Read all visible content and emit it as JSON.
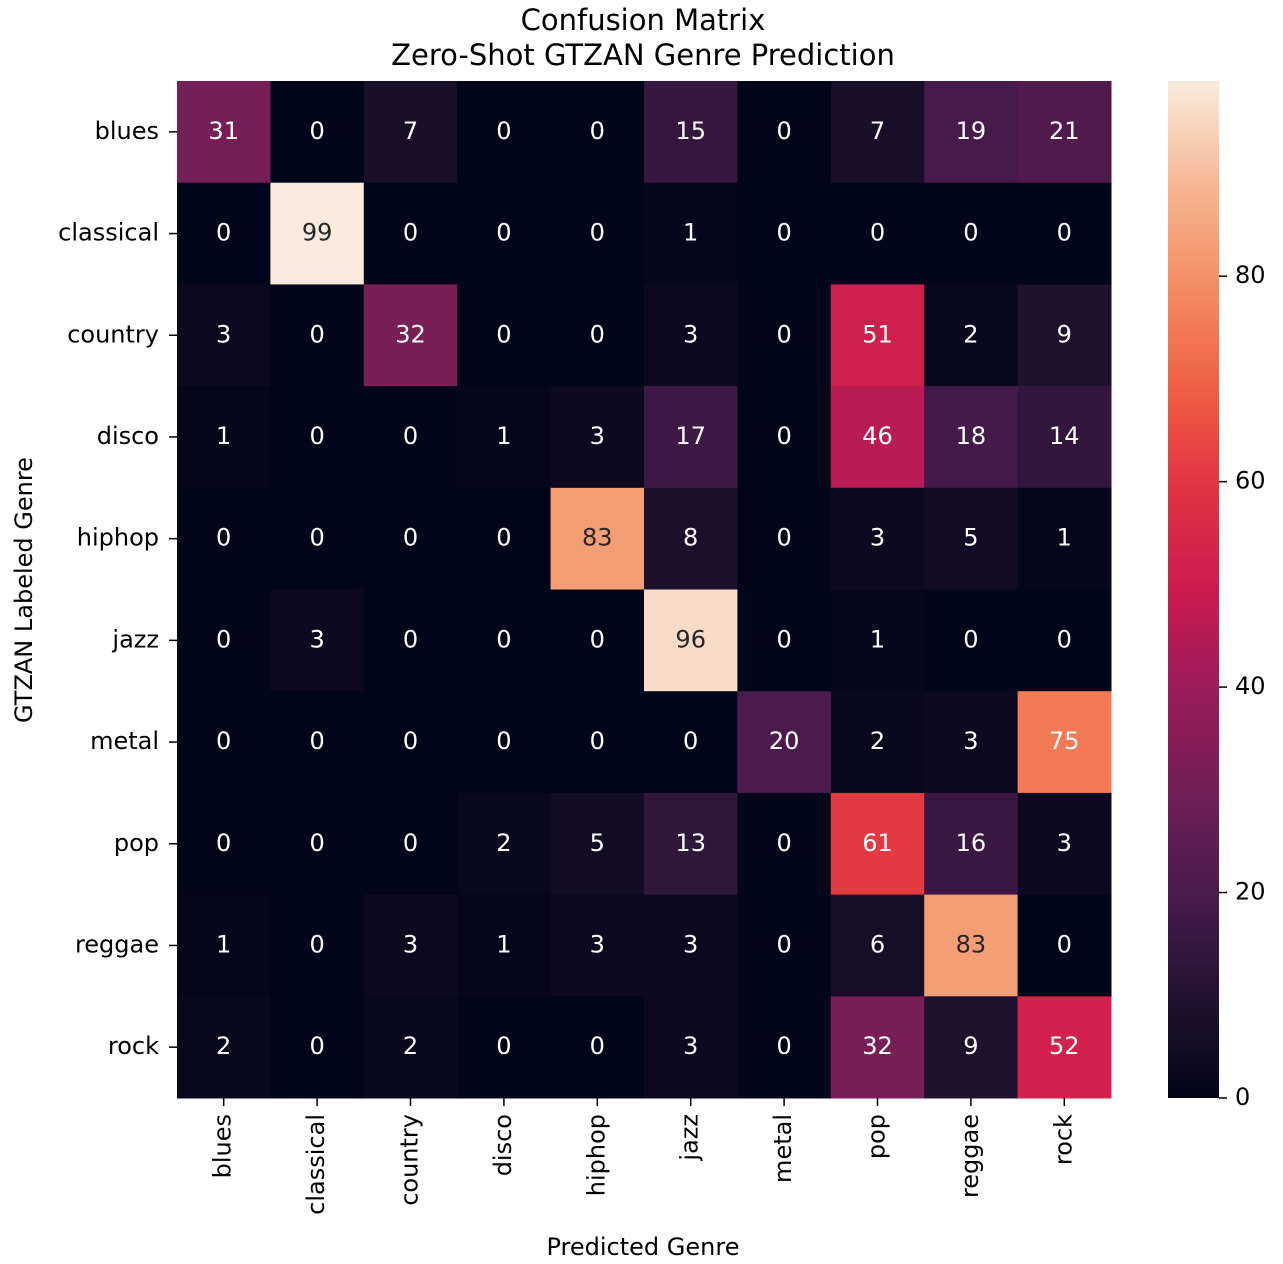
{
  "chart_data": {
    "type": "heatmap",
    "title": "Confusion Matrix",
    "subtitle": "Zero-Shot GTZAN Genre Prediction",
    "x_label": "Predicted Genre",
    "y_label": "GTZAN Labeled Genre",
    "x_categories": [
      "blues",
      "classical",
      "country",
      "disco",
      "hiphop",
      "jazz",
      "metal",
      "pop",
      "reggae",
      "rock"
    ],
    "y_categories": [
      "blues",
      "classical",
      "country",
      "disco",
      "hiphop",
      "jazz",
      "metal",
      "pop",
      "reggae",
      "rock"
    ],
    "values": [
      [
        31,
        0,
        7,
        0,
        0,
        15,
        0,
        7,
        19,
        21
      ],
      [
        0,
        99,
        0,
        0,
        0,
        1,
        0,
        0,
        0,
        0
      ],
      [
        3,
        0,
        32,
        0,
        0,
        3,
        0,
        51,
        2,
        9
      ],
      [
        1,
        0,
        0,
        1,
        3,
        17,
        0,
        46,
        18,
        14
      ],
      [
        0,
        0,
        0,
        0,
        83,
        8,
        0,
        3,
        5,
        1
      ],
      [
        0,
        3,
        0,
        0,
        0,
        96,
        0,
        1,
        0,
        0
      ],
      [
        0,
        0,
        0,
        0,
        0,
        0,
        20,
        2,
        3,
        75
      ],
      [
        0,
        0,
        0,
        2,
        5,
        13,
        0,
        61,
        16,
        3
      ],
      [
        1,
        0,
        3,
        1,
        3,
        3,
        0,
        6,
        83,
        0
      ],
      [
        2,
        0,
        2,
        0,
        0,
        3,
        0,
        32,
        9,
        52
      ]
    ],
    "colormap": "rocket",
    "clim": [
      0,
      99
    ],
    "cticks": [
      0,
      20,
      40,
      60,
      80
    ]
  }
}
